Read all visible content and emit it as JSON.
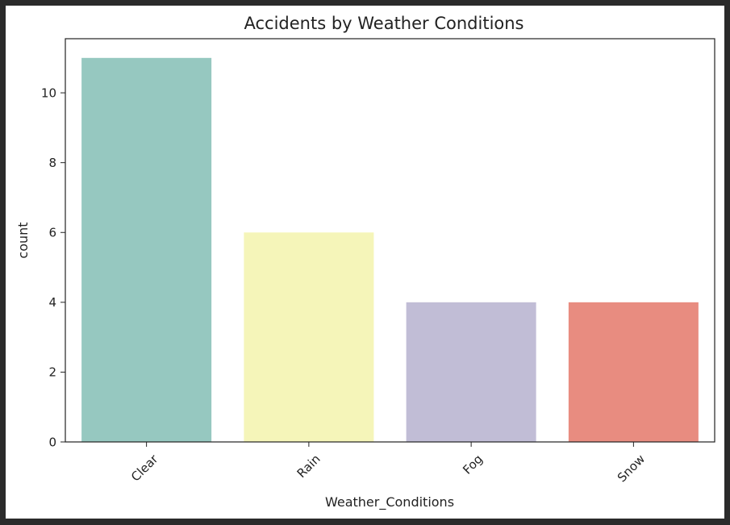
{
  "chart_data": {
    "type": "bar",
    "title": "Accidents by Weather Conditions",
    "xlabel": "Weather_Conditions",
    "ylabel": "count",
    "categories": [
      "Clear",
      "Rain",
      "Fog",
      "Snow"
    ],
    "values": [
      11,
      6,
      4,
      4
    ],
    "colors": [
      "#96c8c0",
      "#f5f5b9",
      "#c1bdd6",
      "#e88c80"
    ],
    "yticks": [
      0,
      2,
      4,
      6,
      8,
      10
    ],
    "ylim": [
      0,
      11.55
    ],
    "grid": false,
    "legend": false,
    "xtick_rotation": 45
  }
}
